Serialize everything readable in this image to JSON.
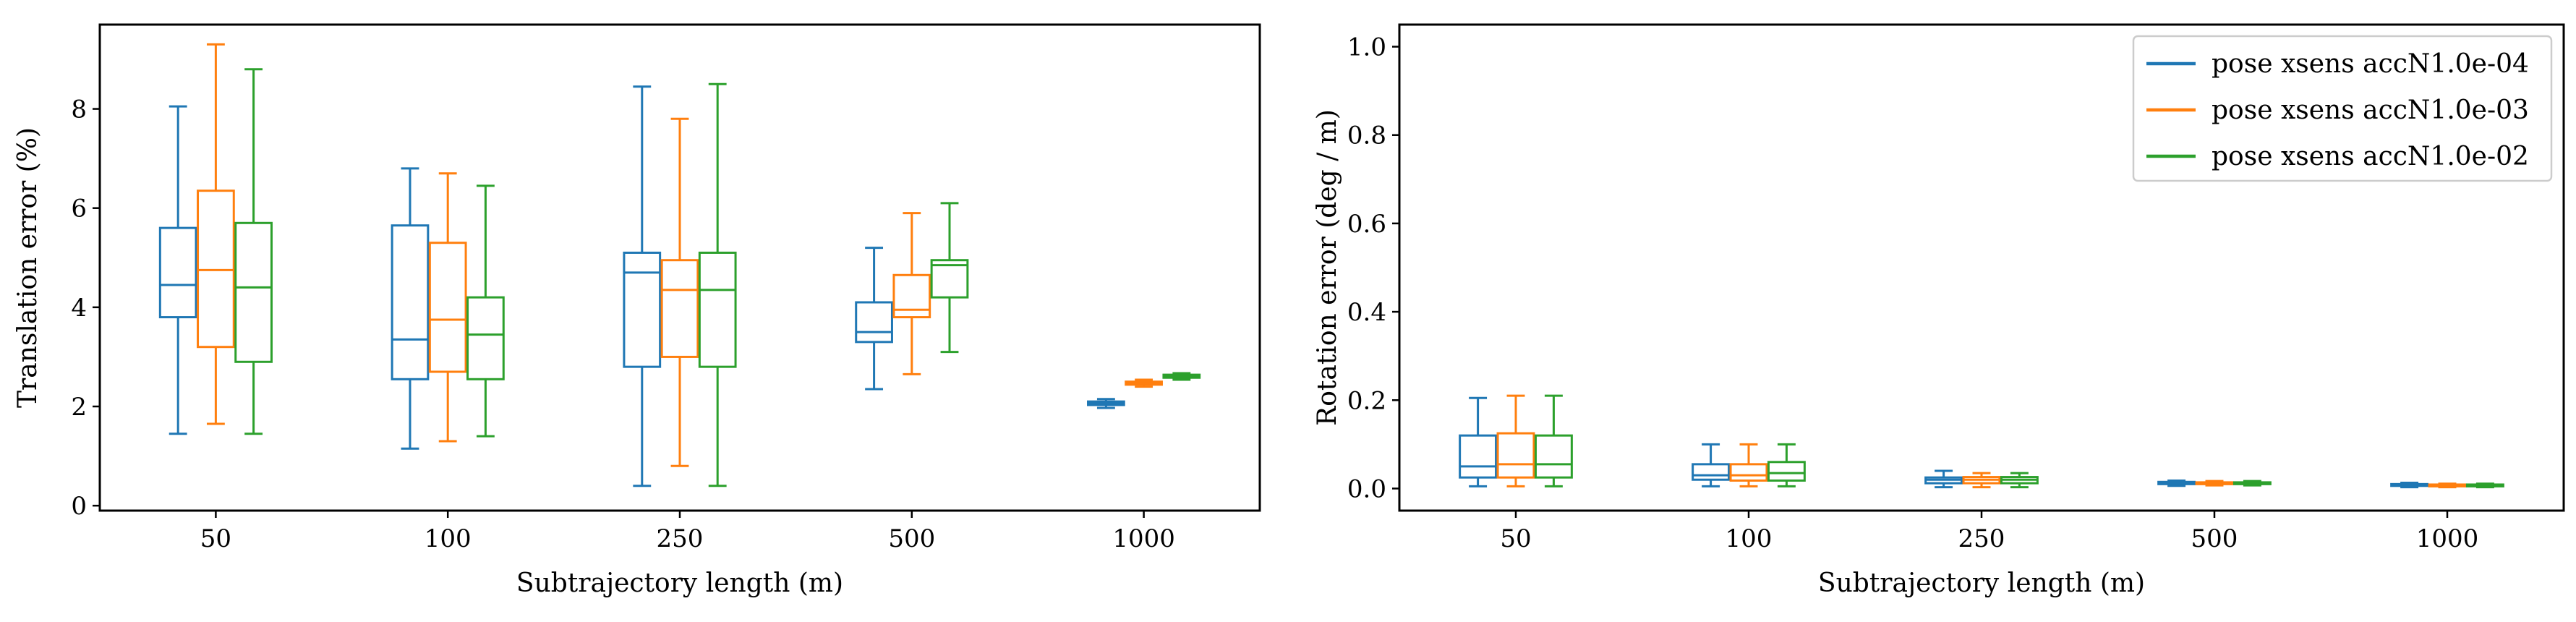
{
  "chart_data": [
    {
      "type": "box",
      "xlabel": "Subtrajectory length (m)",
      "ylabel": "Translation error (%)",
      "ylim": [
        -0.1,
        9.7
      ],
      "yticks": [
        0,
        2,
        4,
        6,
        8
      ],
      "categories": [
        "50",
        "100",
        "250",
        "500",
        "1000"
      ],
      "grid": false,
      "series": [
        {
          "name": "pose xsens accN1.0e-04",
          "color": "#1f77b4",
          "boxes": [
            {
              "whislo": 1.45,
              "q1": 3.8,
              "med": 4.45,
              "q3": 5.6,
              "whishi": 8.05
            },
            {
              "whislo": 1.15,
              "q1": 2.55,
              "med": 3.35,
              "q3": 5.65,
              "whishi": 6.8
            },
            {
              "whislo": 0.4,
              "q1": 2.8,
              "med": 4.7,
              "q3": 5.1,
              "whishi": 8.45
            },
            {
              "whislo": 2.35,
              "q1": 3.3,
              "med": 3.5,
              "q3": 4.1,
              "whishi": 5.2
            },
            {
              "whislo": 1.97,
              "q1": 2.03,
              "med": 2.06,
              "q3": 2.1,
              "whishi": 2.15
            }
          ]
        },
        {
          "name": "pose xsens accN1.0e-03",
          "color": "#ff7f0e",
          "boxes": [
            {
              "whislo": 1.65,
              "q1": 3.2,
              "med": 4.75,
              "q3": 6.35,
              "whishi": 9.3
            },
            {
              "whislo": 1.3,
              "q1": 2.7,
              "med": 3.75,
              "q3": 5.3,
              "whishi": 6.7
            },
            {
              "whislo": 0.8,
              "q1": 3.0,
              "med": 4.35,
              "q3": 4.95,
              "whishi": 7.8
            },
            {
              "whislo": 2.65,
              "q1": 3.8,
              "med": 3.95,
              "q3": 4.65,
              "whishi": 5.9
            },
            {
              "whislo": 2.4,
              "q1": 2.44,
              "med": 2.47,
              "q3": 2.5,
              "whishi": 2.54
            }
          ]
        },
        {
          "name": "pose xsens accN1.0e-02",
          "color": "#2ca02c",
          "boxes": [
            {
              "whislo": 1.45,
              "q1": 2.9,
              "med": 4.4,
              "q3": 5.7,
              "whishi": 8.8
            },
            {
              "whislo": 1.4,
              "q1": 2.55,
              "med": 3.45,
              "q3": 4.2,
              "whishi": 6.45
            },
            {
              "whislo": 0.4,
              "q1": 2.8,
              "med": 4.35,
              "q3": 5.1,
              "whishi": 8.5
            },
            {
              "whislo": 3.1,
              "q1": 4.2,
              "med": 4.85,
              "q3": 4.95,
              "whishi": 6.1
            },
            {
              "whislo": 2.54,
              "q1": 2.58,
              "med": 2.61,
              "q3": 2.64,
              "whishi": 2.67
            }
          ]
        }
      ]
    },
    {
      "type": "box",
      "xlabel": "Subtrajectory length (m)",
      "ylabel": "Rotation error (deg / m)",
      "ylim": [
        -0.05,
        1.05
      ],
      "yticks": [
        "0.0",
        "0.2",
        "0.4",
        "0.6",
        "0.8",
        "1.0"
      ],
      "categories": [
        "50",
        "100",
        "250",
        "500",
        "1000"
      ],
      "grid": false,
      "legend": "top-right",
      "series": [
        {
          "name": "pose xsens accN1.0e-04",
          "color": "#1f77b4",
          "boxes": [
            {
              "whislo": 0.005,
              "q1": 0.025,
              "med": 0.05,
              "q3": 0.12,
              "whishi": 0.205
            },
            {
              "whislo": 0.005,
              "q1": 0.02,
              "med": 0.03,
              "q3": 0.055,
              "whishi": 0.1
            },
            {
              "whislo": 0.003,
              "q1": 0.012,
              "med": 0.02,
              "q3": 0.025,
              "whishi": 0.04
            },
            {
              "whislo": 0.006,
              "q1": 0.01,
              "med": 0.012,
              "q3": 0.015,
              "whishi": 0.018
            },
            {
              "whislo": 0.003,
              "q1": 0.006,
              "med": 0.008,
              "q3": 0.01,
              "whishi": 0.013
            }
          ]
        },
        {
          "name": "pose xsens accN1.0e-03",
          "color": "#ff7f0e",
          "boxes": [
            {
              "whislo": 0.005,
              "q1": 0.025,
              "med": 0.055,
              "q3": 0.125,
              "whishi": 0.21
            },
            {
              "whislo": 0.005,
              "q1": 0.018,
              "med": 0.03,
              "q3": 0.055,
              "whishi": 0.1
            },
            {
              "whislo": 0.003,
              "q1": 0.012,
              "med": 0.02,
              "q3": 0.026,
              "whishi": 0.035
            },
            {
              "whislo": 0.007,
              "q1": 0.01,
              "med": 0.012,
              "q3": 0.014,
              "whishi": 0.017
            },
            {
              "whislo": 0.003,
              "q1": 0.005,
              "med": 0.007,
              "q3": 0.009,
              "whishi": 0.011
            }
          ]
        },
        {
          "name": "pose xsens accN1.0e-02",
          "color": "#2ca02c",
          "boxes": [
            {
              "whislo": 0.005,
              "q1": 0.025,
              "med": 0.055,
              "q3": 0.12,
              "whishi": 0.21
            },
            {
              "whislo": 0.005,
              "q1": 0.018,
              "med": 0.035,
              "q3": 0.06,
              "whishi": 0.1
            },
            {
              "whislo": 0.003,
              "q1": 0.012,
              "med": 0.02,
              "q3": 0.026,
              "whishi": 0.035
            },
            {
              "whislo": 0.007,
              "q1": 0.01,
              "med": 0.012,
              "q3": 0.014,
              "whishi": 0.017
            },
            {
              "whislo": 0.003,
              "q1": 0.005,
              "med": 0.007,
              "q3": 0.009,
              "whishi": 0.011
            }
          ]
        }
      ]
    }
  ]
}
